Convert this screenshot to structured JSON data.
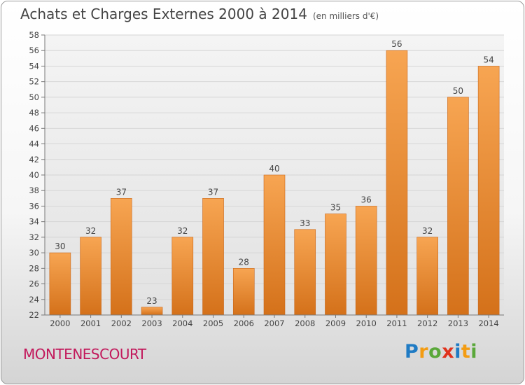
{
  "header": {
    "title": "Achats et Charges Externes 2000 à 2014",
    "unit": "(en milliers d'€)"
  },
  "footer": {
    "town": "MONTENESCOURT",
    "logo": "Proxiti"
  },
  "colors": {
    "bar_light": "#f7a552",
    "bar_dark": "#d4711a",
    "town": "#c2185b"
  },
  "chart_data": {
    "type": "bar",
    "categories": [
      "2000",
      "2001",
      "2002",
      "2003",
      "2004",
      "2005",
      "2006",
      "2007",
      "2008",
      "2009",
      "2010",
      "2011",
      "2012",
      "2013",
      "2014"
    ],
    "values": [
      30,
      32,
      37,
      23,
      32,
      37,
      28,
      40,
      33,
      35,
      36,
      56,
      32,
      50,
      54
    ],
    "ylim": [
      22,
      58
    ],
    "ytick_step": 2,
    "grid": true,
    "data_labels": true,
    "legend": "none"
  }
}
